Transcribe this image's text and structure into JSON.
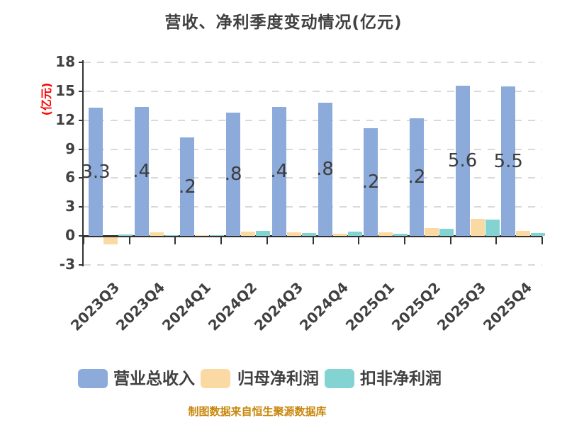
{
  "title": "营收、净利季度变动情况(亿元)",
  "y_axis": {
    "unit_label": "(亿元)",
    "unit_color": "#ff0000",
    "ticks": [
      18,
      15,
      12,
      9,
      6,
      3,
      0,
      -3
    ]
  },
  "chart_data": {
    "type": "bar",
    "categories": [
      "2023Q3",
      "2023Q4",
      "2024Q1",
      "2024Q2",
      "2024Q3",
      "2024Q4",
      "2025Q1",
      "2025Q2",
      "2025Q3",
      "2025Q4"
    ],
    "series": [
      {
        "name": "营业总收入",
        "color": "#8cabdb",
        "values": [
          13.3,
          13.4,
          10.2,
          12.8,
          13.4,
          13.8,
          11.2,
          12.2,
          15.6,
          15.5
        ],
        "visible_bar_labels": [
          "3.3",
          ".4",
          ".2",
          ".8",
          ".4",
          ".8",
          ".2",
          ".2",
          "5.6",
          "5.5"
        ]
      },
      {
        "name": "归母净利润",
        "color": "#fbd9a2",
        "values": [
          -0.75,
          0.35,
          0.1,
          0.45,
          0.35,
          0.25,
          0.4,
          0.8,
          1.75,
          0.5
        ]
      },
      {
        "name": "扣非净利润",
        "color": "#83d3d2",
        "values": [
          0.15,
          0.1,
          0.1,
          0.5,
          0.3,
          0.45,
          0.25,
          0.75,
          1.7,
          0.3
        ]
      }
    ],
    "ylim": [
      -3,
      18
    ],
    "grid": "horizontal-dashed",
    "legend_position": "bottom"
  },
  "legend": {
    "items": [
      {
        "label": "营业总收入",
        "color": "#8cabdb"
      },
      {
        "label": "归母净利润",
        "color": "#fbd9a2"
      },
      {
        "label": "扣非净利润",
        "color": "#83d3d2"
      }
    ]
  },
  "footer": {
    "text": "制图数据来自恒生聚源数据库",
    "color": "#c8860b"
  }
}
